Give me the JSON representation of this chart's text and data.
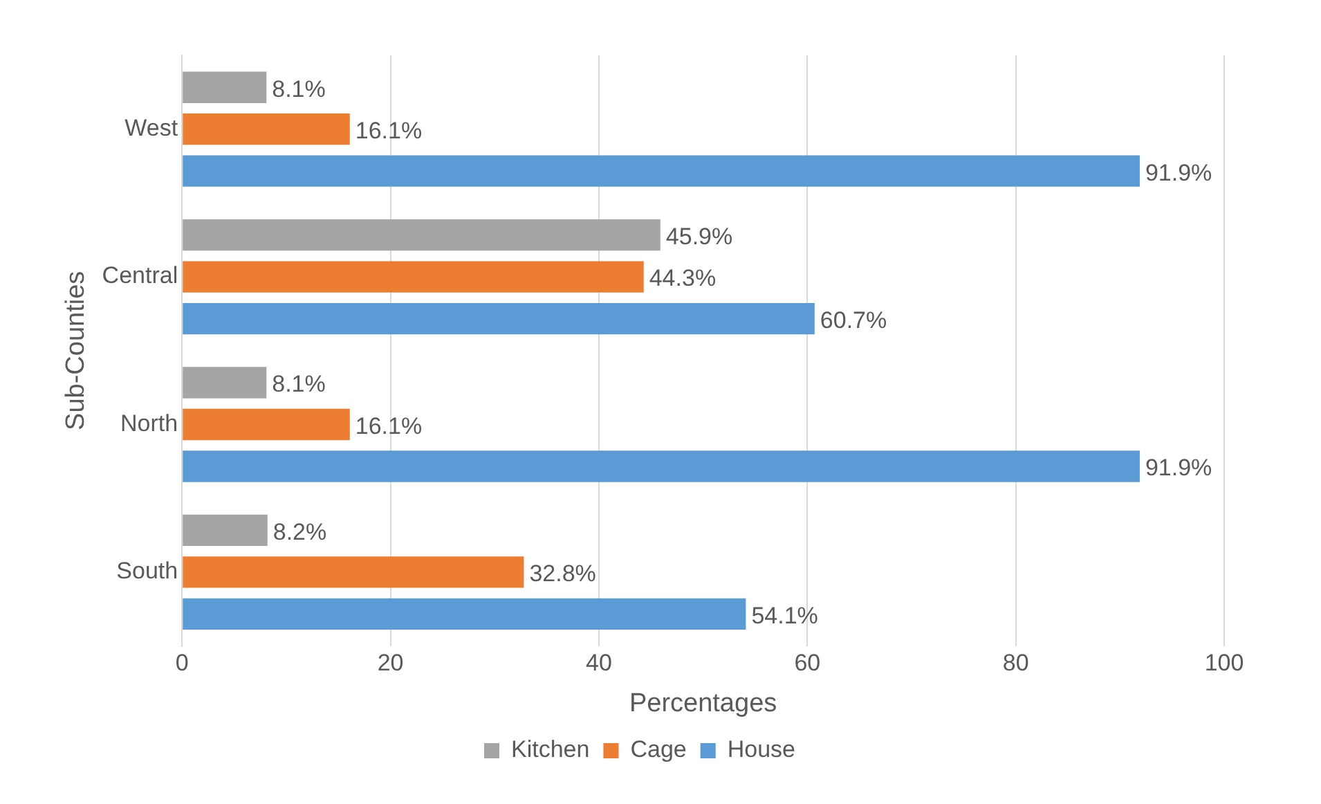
{
  "chart_data": {
    "type": "bar",
    "orientation": "horizontal",
    "xlabel": "Percentages",
    "ylabel": "Sub-Counties",
    "categories": [
      "West",
      "Central",
      "North",
      "South"
    ],
    "series": [
      {
        "name": "Kitchen",
        "color": "#a5a5a5",
        "values": [
          8.1,
          45.9,
          8.1,
          8.2
        ],
        "value_labels": [
          "8.1%",
          "45.9%",
          "8.1%",
          "8.2%"
        ]
      },
      {
        "name": "Cage",
        "color": "#ed7d31",
        "values": [
          16.1,
          44.3,
          16.1,
          32.8
        ],
        "value_labels": [
          "16.1%",
          "44.3%",
          "16.1%",
          "32.8%"
        ]
      },
      {
        "name": "House",
        "color": "#5b9bd5",
        "values": [
          91.9,
          60.7,
          91.9,
          54.1
        ],
        "value_labels": [
          "91.9%",
          "60.7%",
          "91.9%",
          "54.1%"
        ]
      }
    ],
    "xlim": [
      0,
      100
    ],
    "xticks": [
      0,
      20,
      40,
      60,
      80,
      100
    ],
    "grid": "x",
    "legend": "bottom"
  }
}
